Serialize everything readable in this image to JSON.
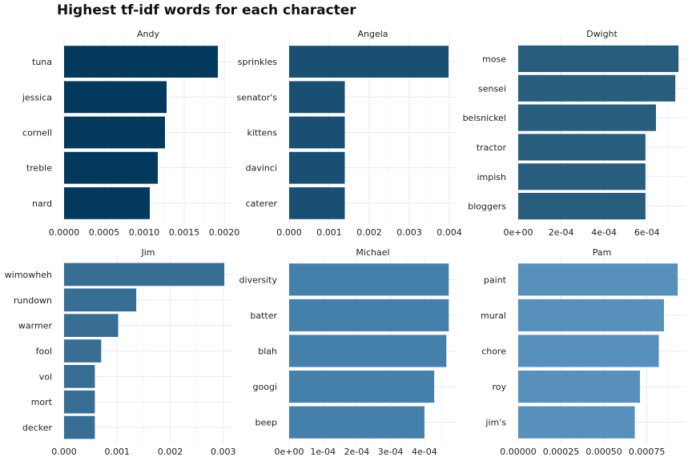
{
  "title": "Highest tf-idf words for each character",
  "chart_data": [
    {
      "type": "bar",
      "orientation": "horizontal",
      "title": "Andy",
      "color": "#04395e",
      "categories": [
        "tuna",
        "jessica",
        "cornell",
        "treble",
        "nard"
      ],
      "values": [
        0.00192,
        0.00128,
        0.00126,
        0.00117,
        0.00107
      ],
      "xlim": [
        0,
        0.0021
      ],
      "xticks": [
        0,
        0.0005,
        0.001,
        0.0015,
        0.002
      ],
      "xtick_labels": [
        "0.0000",
        "0.0005",
        "0.0010",
        "0.0015",
        "0.0020"
      ]
    },
    {
      "type": "bar",
      "orientation": "horizontal",
      "title": "Angela",
      "color": "#184f72",
      "categories": [
        "sprinkles",
        "senator's",
        "kittens",
        "davinci",
        "caterer"
      ],
      "values": [
        0.00398,
        0.00139,
        0.00139,
        0.00139,
        0.00139
      ],
      "xlim": [
        0,
        0.00418
      ],
      "xticks": [
        0,
        0.001,
        0.002,
        0.003,
        0.004
      ],
      "xtick_labels": [
        "0.000",
        "0.001",
        "0.002",
        "0.003",
        "0.004"
      ]
    },
    {
      "type": "bar",
      "orientation": "horizontal",
      "title": "Dwight",
      "color": "#285d7e",
      "categories": [
        "mose",
        "sensei",
        "belsnickel",
        "tractor",
        "impish",
        "bloggers"
      ],
      "values": [
        0.000747,
        0.000732,
        0.000642,
        0.000593,
        0.000593,
        0.000593
      ],
      "xlim": [
        0,
        0.00078
      ],
      "xticks": [
        0,
        0.0002,
        0.0004,
        0.0006
      ],
      "xtick_labels": [
        "0e+00",
        "2e-04",
        "4e-04",
        "6e-04"
      ]
    },
    {
      "type": "bar",
      "orientation": "horizontal",
      "title": "Jim",
      "color": "#386e94",
      "categories": [
        "wimowheh",
        "rundown",
        "warmer",
        "fool",
        "vol",
        "mort",
        "decker"
      ],
      "values": [
        0.00302,
        0.00136,
        0.00102,
        0.0007,
        0.00058,
        0.00058,
        0.00058
      ],
      "xlim": [
        0,
        0.00317
      ],
      "xticks": [
        0,
        0.001,
        0.002,
        0.003
      ],
      "xtick_labels": [
        "0.000",
        "0.001",
        "0.002",
        "0.003"
      ]
    },
    {
      "type": "bar",
      "orientation": "horizontal",
      "title": "Michael",
      "color": "#4580aa",
      "categories": [
        "diversity",
        "batter",
        "blah",
        "googi",
        "beep"
      ],
      "values": [
        0.000472,
        0.000472,
        0.000465,
        0.000429,
        0.0004
      ],
      "xlim": [
        0,
        0.000495
      ],
      "xticks": [
        0,
        0.0001,
        0.0002,
        0.0003,
        0.0004
      ],
      "xtick_labels": [
        "0e+00",
        "1e-04",
        "2e-04",
        "3e-04",
        "4e-04"
      ]
    },
    {
      "type": "bar",
      "orientation": "horizontal",
      "title": "Pam",
      "color": "#5790bb",
      "categories": [
        "paint",
        "mural",
        "chore",
        "roy",
        "jim's"
      ],
      "values": [
        0.00093,
        0.00085,
        0.00082,
        0.00071,
        0.00068
      ],
      "xlim": [
        0,
        0.000976
      ],
      "xticks": [
        0,
        0.00025,
        0.0005,
        0.00075
      ],
      "xtick_labels": [
        "0.00000",
        "0.00025",
        "0.00050",
        "0.00075"
      ]
    }
  ]
}
